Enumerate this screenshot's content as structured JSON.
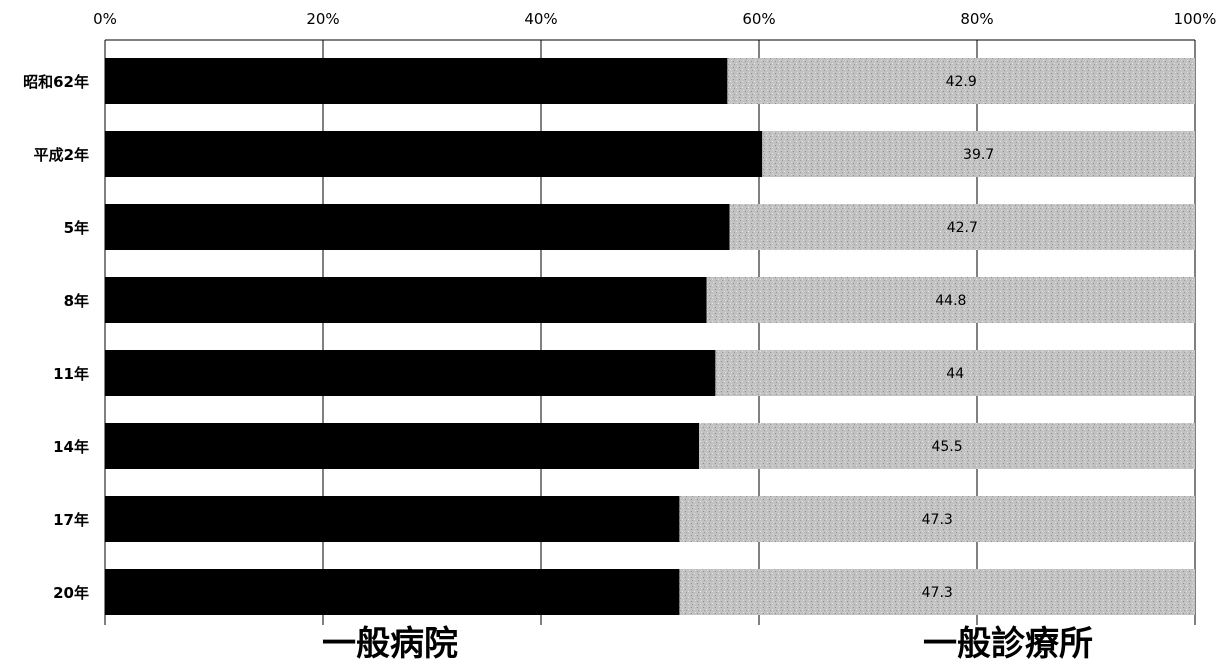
{
  "chart_data": {
    "type": "bar",
    "orientation": "horizontal",
    "stacked": "percent",
    "categories": [
      "昭和62年",
      "平成2年",
      "5年",
      "8年",
      "11年",
      "14年",
      "17年",
      "20年"
    ],
    "series": [
      {
        "name": "一般病院",
        "values": [
          57.1,
          60.3,
          57.3,
          55.2,
          56.0,
          54.5,
          52.7,
          52.7
        ],
        "color": "#000000"
      },
      {
        "name": "一般診療所",
        "values": [
          42.9,
          39.7,
          42.7,
          44.8,
          44,
          45.5,
          47.3,
          47.3
        ],
        "color": "#b8b8b8",
        "data_labels": [
          "42.9",
          "39.7",
          "42.7",
          "44.8",
          "44",
          "45.5",
          "47.3",
          "47.3"
        ]
      }
    ],
    "x_ticks": [
      "0%",
      "20%",
      "40%",
      "60%",
      "80%",
      "100%"
    ],
    "xlim": [
      0,
      100
    ],
    "x_axis_position": "top",
    "grid": true,
    "legend_placement": "bottom"
  }
}
